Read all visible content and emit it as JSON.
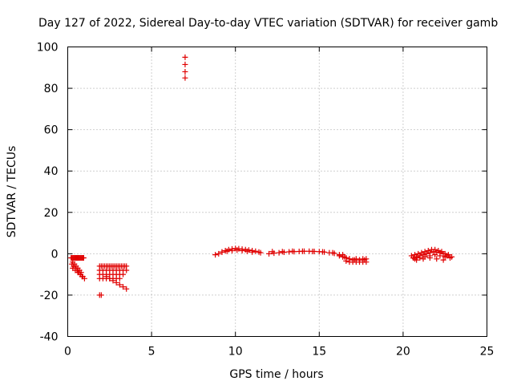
{
  "chart_data": {
    "type": "scatter",
    "title": "Day 127 of 2022, Sidereal Day-to-day VTEC variation (SDTVAR) for receiver gamb",
    "xlabel": "GPS time / hours",
    "ylabel": "SDTVAR / TECUs",
    "xlim": [
      0,
      25
    ],
    "ylim": [
      -40,
      100
    ],
    "xticks": [
      0,
      5,
      10,
      15,
      20,
      25
    ],
    "yticks": [
      -40,
      -20,
      0,
      20,
      40,
      60,
      80,
      100
    ],
    "grid": true,
    "marker": "+",
    "series_color": "#e00000",
    "series": [
      {
        "name": "SDTVAR",
        "x": [
          0.2,
          0.25,
          0.3,
          0.35,
          0.4,
          0.45,
          0.5,
          0.55,
          0.6,
          0.65,
          0.7,
          0.75,
          0.8,
          0.85,
          0.9,
          0.95,
          0.3,
          0.4,
          0.5,
          0.6,
          0.7,
          0.8,
          0.25,
          0.35,
          0.45,
          0.55,
          0.65,
          0.75,
          0.85,
          0.3,
          0.45,
          0.6,
          0.75,
          0.9,
          1.0,
          1.9,
          2.0,
          1.9,
          2.0,
          2.1,
          2.2,
          2.3,
          2.4,
          2.5,
          2.6,
          2.7,
          2.8,
          2.9,
          3.0,
          3.1,
          3.2,
          3.3,
          3.4,
          3.5,
          1.9,
          2.1,
          2.3,
          2.5,
          2.7,
          2.9,
          3.1,
          3.3,
          3.5,
          1.9,
          2.1,
          2.3,
          2.5,
          2.7,
          2.9,
          3.1,
          3.3,
          1.9,
          2.1,
          2.3,
          2.5,
          2.7,
          2.9,
          3.1,
          2.3,
          2.5,
          2.7,
          2.9,
          3.1,
          3.3,
          3.5,
          7.0,
          7.0,
          7.0,
          7.0,
          8.8,
          9.0,
          9.2,
          9.4,
          9.6,
          9.8,
          10.0,
          10.2,
          10.4,
          10.6,
          10.8,
          11.0,
          11.2,
          11.4,
          11.5,
          9.2,
          9.5,
          9.8,
          10.1,
          10.4,
          10.7,
          11.0,
          12.0,
          12.3,
          12.6,
          12.9,
          13.2,
          13.5,
          13.8,
          14.1,
          14.4,
          14.7,
          15.0,
          15.3,
          15.6,
          15.9,
          16.2,
          16.5,
          16.8,
          17.1,
          17.4,
          17.7,
          12.2,
          12.8,
          13.4,
          14.0,
          14.6,
          15.2,
          15.8,
          16.4,
          16.2,
          16.4,
          16.6,
          16.8,
          17.0,
          17.2,
          17.4,
          17.6,
          17.8,
          16.6,
          16.8,
          17.0,
          17.2,
          17.4,
          17.6,
          17.8,
          20.5,
          20.7,
          20.9,
          21.1,
          21.3,
          21.5,
          21.7,
          21.9,
          22.1,
          22.3,
          22.5,
          22.7,
          22.9,
          20.6,
          20.8,
          21.0,
          21.2,
          21.4,
          21.6,
          21.8,
          22.0,
          22.2,
          22.4,
          22.6,
          20.7,
          21.0,
          21.3,
          21.6,
          21.9,
          22.2,
          22.5,
          22.8,
          20.8,
          21.2,
          21.6,
          22.0,
          22.4
        ],
        "y": [
          -2,
          -2,
          -2,
          -2,
          -2,
          -2,
          -2,
          -2,
          -2,
          -2,
          -2,
          -2,
          -2,
          -2,
          -2,
          -2,
          -4,
          -5,
          -6,
          -7,
          -8,
          -9,
          -5,
          -6,
          -7,
          -8,
          -9,
          -10,
          -11,
          -7,
          -8,
          -9,
          -10,
          -11,
          -12,
          -20,
          -20,
          -6,
          -6,
          -6,
          -6,
          -6,
          -6,
          -6,
          -6,
          -6,
          -6,
          -6,
          -6,
          -6,
          -6,
          -6,
          -6,
          -6,
          -8,
          -8,
          -8,
          -8,
          -8,
          -8,
          -8,
          -8,
          -8,
          -10,
          -10,
          -10,
          -10,
          -10,
          -10,
          -10,
          -10,
          -12,
          -12,
          -12,
          -12,
          -12,
          -12,
          -12,
          -11,
          -12,
          -13,
          -14,
          -15,
          -16,
          -17,
          95,
          91.5,
          88,
          85,
          -0.5,
          0,
          0.8,
          1.5,
          2,
          2.3,
          2.5,
          2.4,
          2.2,
          2,
          1.8,
          1.5,
          1.2,
          0.8,
          0.5,
          0.8,
          1.2,
          1.5,
          1.8,
          1.5,
          1.2,
          0.8,
          0,
          0.3,
          0.5,
          0.7,
          0.9,
          1,
          1.1,
          1.2,
          1.2,
          1.1,
          1,
          0.8,
          0.5,
          0.2,
          -0.5,
          -1.5,
          -2.5,
          -3,
          -3,
          -3,
          1,
          1,
          1.2,
          1.2,
          1.1,
          0.9,
          0.5,
          -0.5,
          -1,
          -1.5,
          -2,
          -2.5,
          -3,
          -2.5,
          -3,
          -2.5,
          -2.5,
          -3.5,
          -4,
          -4,
          -4,
          -4,
          -4,
          -4,
          -1,
          -0.5,
          0,
          0.5,
          1,
          1.5,
          2,
          2,
          1.5,
          1,
          0,
          -0.5,
          -1.5,
          -2,
          -1.5,
          -1,
          -0.5,
          0,
          0.5,
          1,
          0.8,
          0.5,
          0,
          -1,
          -2.5,
          -2,
          -1.5,
          -1,
          -0.5,
          -1,
          -1.5,
          -2,
          -3,
          -2.5,
          -2,
          -2.5,
          -3
        ]
      }
    ]
  }
}
